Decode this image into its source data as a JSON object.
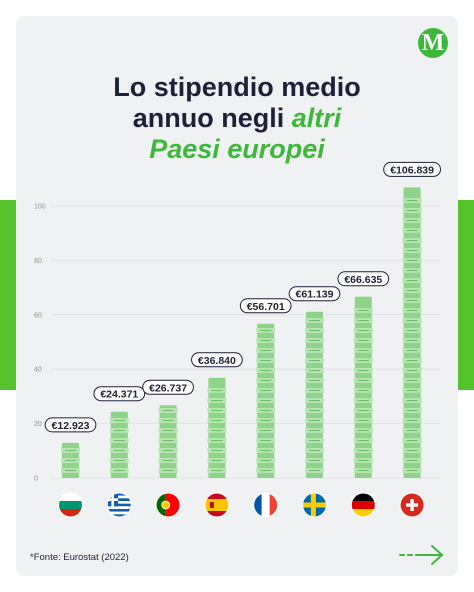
{
  "brand": {
    "logo_letter": "M",
    "accent_color": "#3db83a",
    "frame_color": "#54c22b",
    "logo_icon": "money-logo-icon"
  },
  "title": {
    "line1": "Lo stipendio medio",
    "line2_start": "annuo negli ",
    "line2_accent": "altri",
    "line3_accent": "Paesi europei"
  },
  "source": "*Fonte: Eurostat (2022)",
  "nav": {
    "next_icon": "arrow-right-icon"
  },
  "chart_data": {
    "type": "bar",
    "categories": [
      "Bulgaria",
      "Grecia",
      "Portogallo",
      "Spagna",
      "Francia",
      "Svezia",
      "Germania",
      "Svizzera"
    ],
    "values": [
      12923,
      24371,
      26737,
      36840,
      56701,
      61139,
      66635,
      106839
    ],
    "value_labels": [
      "€12.923",
      "€24.371",
      "€26.737",
      "€36.840",
      "€56.701",
      "€61.139",
      "€66.635",
      "€106.839"
    ],
    "y_ticks": [
      "0",
      "20",
      "40",
      "60",
      "80",
      "100"
    ],
    "y_tick_values": [
      0,
      20,
      40,
      60,
      80,
      100
    ],
    "ylim": [
      0,
      100
    ],
    "y_unit_scale": 1000,
    "grid": true,
    "bar_style": "stacked euro banknotes",
    "bar_color": "#8fd38a",
    "flag_icons": [
      "bulgaria-flag-icon",
      "greece-flag-icon",
      "portugal-flag-icon",
      "spain-flag-icon",
      "france-flag-icon",
      "sweden-flag-icon",
      "germany-flag-icon",
      "switzerland-flag-icon"
    ]
  }
}
